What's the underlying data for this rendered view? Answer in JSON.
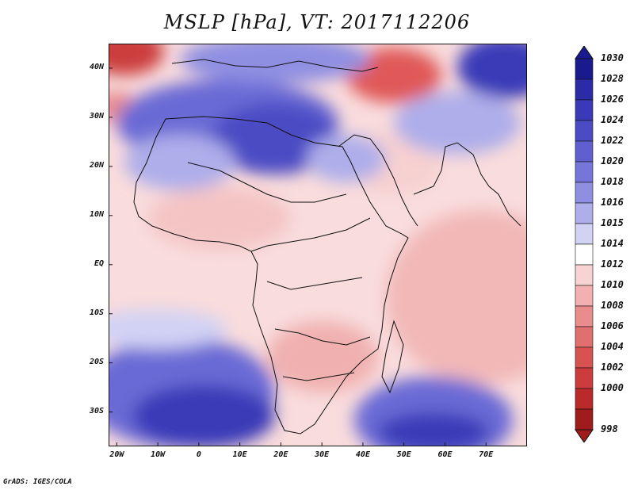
{
  "title": "MSLP [hPa], VT: 2017112206",
  "credit": "GrADS: IGES/COLA",
  "map": {
    "lon_range": [
      -22,
      80
    ],
    "lat_range": [
      -37,
      45
    ],
    "y_ticks": [
      {
        "lat": 40,
        "label": "40N"
      },
      {
        "lat": 30,
        "label": "30N"
      },
      {
        "lat": 20,
        "label": "20N"
      },
      {
        "lat": 10,
        "label": "10N"
      },
      {
        "lat": 0,
        "label": "EQ"
      },
      {
        "lat": -10,
        "label": "10S"
      },
      {
        "lat": -20,
        "label": "20S"
      },
      {
        "lat": -30,
        "label": "30S"
      }
    ],
    "x_ticks": [
      {
        "lon": -20,
        "label": "20W"
      },
      {
        "lon": -10,
        "label": "10W"
      },
      {
        "lon": 0,
        "label": "0"
      },
      {
        "lon": 10,
        "label": "10E"
      },
      {
        "lon": 20,
        "label": "20E"
      },
      {
        "lon": 30,
        "label": "30E"
      },
      {
        "lon": 40,
        "label": "40E"
      },
      {
        "lon": 50,
        "label": "50E"
      },
      {
        "lon": 60,
        "label": "60E"
      },
      {
        "lon": 70,
        "label": "70E"
      }
    ],
    "pressure_features": [
      {
        "name": "High over Mediterranean / Libya",
        "lon": 18,
        "lat": 28,
        "hpa": 1024
      },
      {
        "name": "High over South Atlantic",
        "lon": 5,
        "lat": -32,
        "hpa": 1028
      },
      {
        "name": "High over Indian Ocean",
        "lon": 55,
        "lat": -35,
        "hpa": 1028
      },
      {
        "name": "High over Central Asia",
        "lon": 78,
        "lat": 42,
        "hpa": 1030
      },
      {
        "name": "Low near Turkey / Caucasus",
        "lon": 42,
        "lat": 42,
        "hpa": 1002
      },
      {
        "name": "Low near Iberia",
        "lon": -18,
        "lat": 44,
        "hpa": 1004
      },
      {
        "name": "Low over Southern Africa",
        "lon": 24,
        "lat": -18,
        "hpa": 1008
      },
      {
        "name": "Low over Arabian Sea",
        "lon": 62,
        "lat": -5,
        "hpa": 1010
      }
    ]
  },
  "colorbar": {
    "levels": [
      "1030",
      "1028",
      "1026",
      "1024",
      "1022",
      "1020",
      "1018",
      "1016",
      "1015",
      "1014",
      "1012",
      "1010",
      "1008",
      "1006",
      "1004",
      "1002",
      "1000",
      "998"
    ],
    "colors": [
      "#1a1a8f",
      "#2b2ba8",
      "#3a3ab8",
      "#4b4bc4",
      "#5f5fd0",
      "#7676da",
      "#8f8fe2",
      "#aeaeea",
      "#d2d2f4",
      "#ffffff",
      "#f7d3d3",
      "#f2b0b0",
      "#e88c8c",
      "#e06f6f",
      "#d85252",
      "#cc3c3c",
      "#bb2a2a",
      "#a01c1c"
    ],
    "unit": "hPa"
  }
}
